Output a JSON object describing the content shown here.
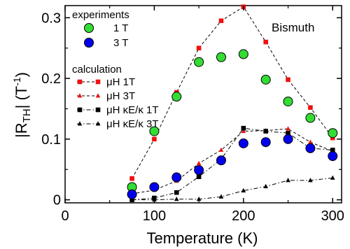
{
  "chart_data": {
    "type": "scatter",
    "xlabel": "Temperature (K)",
    "ylabel": "|R_TH| (T^-1)",
    "xlim": [
      0,
      310
    ],
    "ylim": [
      -0.005,
      0.32
    ],
    "xticks": [
      0,
      100,
      200,
      300
    ],
    "yticks": [
      0,
      0.1,
      0.2,
      0.3
    ],
    "ytick_labels": [
      "0",
      "0.1",
      "0.2",
      "0.3"
    ],
    "annotation": "Bismuth",
    "legend": {
      "position": "top-left",
      "experiments_heading": "experiments",
      "calculation_heading": "calculation"
    },
    "series": [
      {
        "name": "1 T",
        "group": "experiments",
        "marker": "circle",
        "color": "#33dd33",
        "line": "none",
        "x": [
          75,
          100,
          125,
          150,
          175,
          200,
          225,
          250,
          275,
          300
        ],
        "y": [
          0.021,
          0.113,
          0.17,
          0.227,
          0.235,
          0.24,
          0.198,
          0.162,
          0.135,
          0.11
        ]
      },
      {
        "name": "3 T",
        "group": "experiments",
        "marker": "circle",
        "color": "#0000ee",
        "line": "none",
        "x": [
          75,
          100,
          125,
          150,
          175,
          200,
          225,
          250,
          275,
          300
        ],
        "y": [
          0.009,
          0.021,
          0.037,
          0.049,
          0.065,
          0.093,
          0.095,
          0.1,
          0.085,
          0.072
        ]
      },
      {
        "name": "μH 1T",
        "group": "calculation",
        "marker": "square",
        "color": "#ee1111",
        "line": "dashed",
        "x": [
          75,
          100,
          125,
          150,
          175,
          200,
          225,
          250,
          275,
          300
        ],
        "y": [
          0.035,
          0.1,
          0.177,
          0.25,
          0.295,
          0.318,
          0.26,
          0.198,
          0.152,
          0.102
        ]
      },
      {
        "name": "μH 3T",
        "group": "calculation",
        "marker": "triangle",
        "color": "#ee1111",
        "line": "dashed",
        "x": [
          75,
          100,
          125,
          150,
          175,
          200,
          225,
          250,
          275,
          300
        ],
        "y": [
          0.01,
          0.016,
          0.031,
          0.06,
          0.082,
          0.113,
          0.114,
          0.117,
          0.095,
          0.08
        ]
      },
      {
        "name": "μH κE/κ 1T",
        "group": "calculation",
        "marker": "square",
        "color": "#000000",
        "line": "dashdot",
        "x": [
          75,
          100,
          125,
          150,
          175,
          200,
          225,
          250,
          275,
          300
        ],
        "y": [
          0.0,
          0.003,
          0.012,
          0.038,
          0.067,
          0.118,
          0.113,
          0.11,
          0.085,
          0.082
        ]
      },
      {
        "name": "μH κE/κ 3T",
        "group": "calculation",
        "marker": "triangle",
        "color": "#000000",
        "line": "dashdot",
        "x": [
          75,
          100,
          125,
          150,
          175,
          200,
          225,
          250,
          275,
          300
        ],
        "y": [
          0.0,
          0.0,
          0.001,
          0.001,
          0.005,
          0.015,
          0.022,
          0.032,
          0.032,
          0.036
        ]
      }
    ]
  }
}
